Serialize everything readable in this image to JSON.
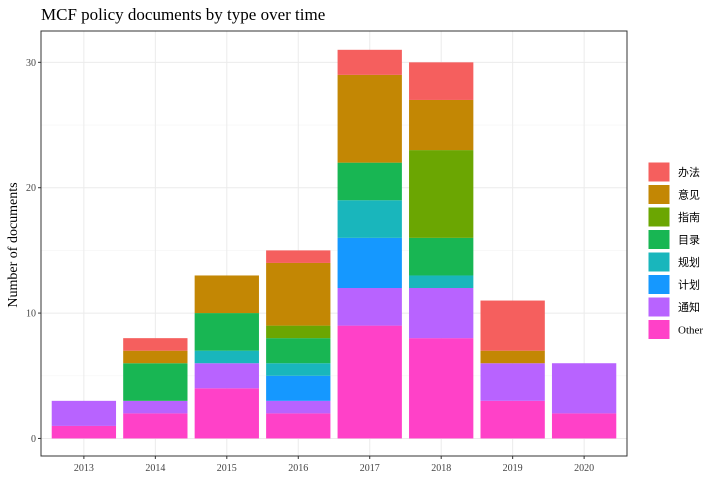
{
  "chart_data": {
    "type": "bar",
    "stacked": true,
    "title": "MCF policy documents by type over time",
    "xlabel": "",
    "ylabel": "Number of documents",
    "categories": [
      "2013",
      "2014",
      "2015",
      "2016",
      "2017",
      "2018",
      "2019",
      "2020"
    ],
    "ylim": [
      -1.4,
      32.5
    ],
    "yticks": [
      0,
      10,
      20,
      30
    ],
    "grid": true,
    "legend_position": "right",
    "series": [
      {
        "name": "Other",
        "color": "#FF41C8",
        "values": [
          1,
          2,
          4,
          2,
          9,
          8,
          3,
          2
        ]
      },
      {
        "name": "通知",
        "color": "#B863FF",
        "values": [
          2,
          1,
          2,
          1,
          3,
          4,
          3,
          4
        ]
      },
      {
        "name": "计划",
        "color": "#1598FF",
        "values": [
          0,
          0,
          0,
          2,
          4,
          0,
          0,
          0
        ]
      },
      {
        "name": "规划",
        "color": "#19B6BC",
        "values": [
          0,
          0,
          1,
          1,
          3,
          1,
          0,
          0
        ]
      },
      {
        "name": "目录",
        "color": "#18B653",
        "values": [
          0,
          3,
          3,
          2,
          3,
          3,
          0,
          0
        ]
      },
      {
        "name": "指南",
        "color": "#6BA602",
        "values": [
          0,
          0,
          0,
          1,
          0,
          7,
          0,
          0
        ]
      },
      {
        "name": "意见",
        "color": "#C38704",
        "values": [
          0,
          1,
          3,
          5,
          7,
          4,
          1,
          0
        ]
      },
      {
        "name": "办法",
        "color": "#F55F5E",
        "values": [
          0,
          1,
          0,
          1,
          2,
          3,
          4,
          0
        ]
      }
    ],
    "legend_order": [
      "办法",
      "意见",
      "指南",
      "目录",
      "规划",
      "计划",
      "通知",
      "Other"
    ]
  },
  "colors": {
    "panel_border": "#333333",
    "grid_major": "#ebebeb",
    "grid_minor": "#f5f5f5",
    "tick_text": "#444444"
  }
}
